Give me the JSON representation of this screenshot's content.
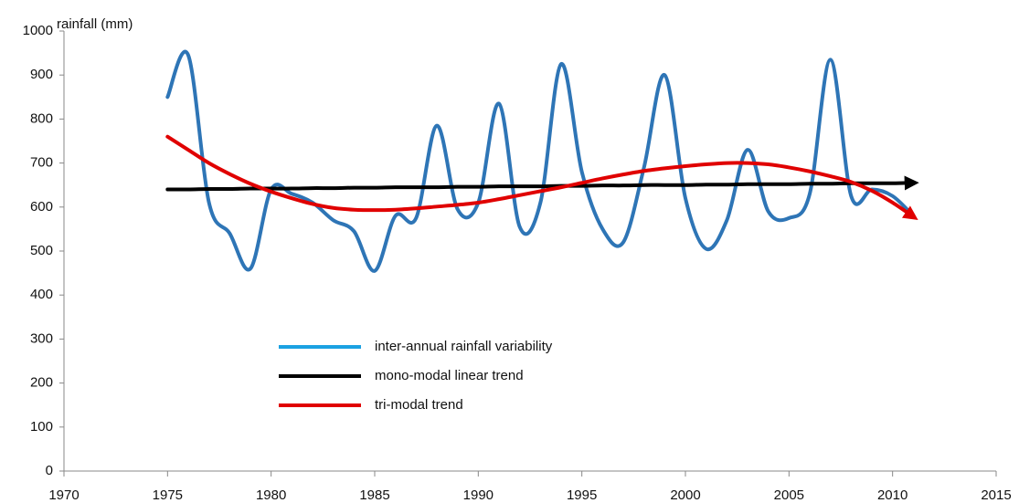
{
  "chart_data": {
    "type": "line",
    "y_label": "rainfall (mm)",
    "x": [
      1975,
      1976,
      1977,
      1978,
      1979,
      1980,
      1981,
      1982,
      1983,
      1984,
      1985,
      1986,
      1987,
      1988,
      1989,
      1990,
      1991,
      1992,
      1993,
      1994,
      1995,
      1996,
      1997,
      1998,
      1999,
      2000,
      2001,
      2002,
      2003,
      2004,
      2005,
      2006,
      2007,
      2008,
      2009,
      2010,
      2011
    ],
    "series": [
      {
        "name": "inter-annual rainfall variability",
        "color": "#2e75b6",
        "arrow": false,
        "values": [
          850,
          945,
          610,
          540,
          460,
          640,
          630,
          610,
          570,
          545,
          455,
          580,
          575,
          785,
          595,
          610,
          835,
          555,
          610,
          925,
          680,
          550,
          520,
          690,
          900,
          620,
          505,
          570,
          730,
          590,
          575,
          630,
          935,
          625,
          640,
          625,
          580
        ]
      },
      {
        "name": "mono-modal linear trend",
        "color": "#000000",
        "arrow": true,
        "values": [
          640,
          640,
          641,
          641,
          642,
          642,
          642,
          643,
          643,
          644,
          644,
          645,
          645,
          645,
          646,
          646,
          647,
          647,
          647,
          648,
          648,
          649,
          649,
          650,
          650,
          650,
          651,
          651,
          652,
          652,
          652,
          653,
          653,
          654,
          654,
          654,
          655
        ]
      },
      {
        "name": "tri-modal trend",
        "color": "#e00000",
        "arrow": true,
        "values": [
          760,
          730,
          700,
          675,
          653,
          635,
          620,
          607,
          598,
          594,
          593,
          594,
          597,
          601,
          605,
          610,
          618,
          627,
          636,
          645,
          655,
          665,
          674,
          682,
          688,
          693,
          697,
          700,
          700,
          697,
          690,
          681,
          670,
          657,
          637,
          610,
          578
        ]
      }
    ],
    "xlim": [
      1970,
      2015
    ],
    "xticks": [
      1970,
      1975,
      1980,
      1985,
      1990,
      1995,
      2000,
      2005,
      2010,
      2015
    ],
    "ylim": [
      0,
      1000
    ],
    "yticks": [
      0,
      100,
      200,
      300,
      400,
      500,
      600,
      700,
      800,
      900,
      1000
    ],
    "legend_colors": [
      "#1ba1e2",
      "#000000",
      "#e00000"
    ]
  }
}
